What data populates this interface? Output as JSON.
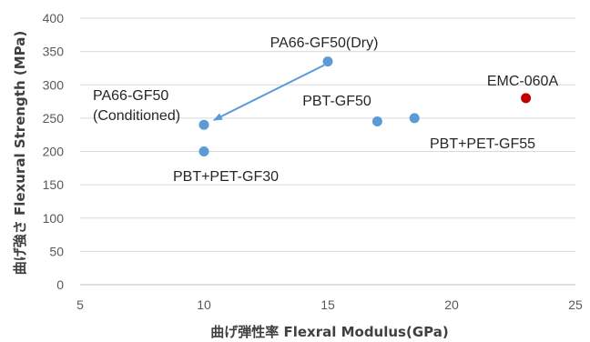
{
  "chart_data": {
    "type": "scatter",
    "xlabel": "曲げ弾性率 Flexral Modulus(GPa)",
    "ylabel": "曲げ強さ Flexural Strength (MPa)",
    "xlim": [
      5,
      25
    ],
    "ylim": [
      0,
      400
    ],
    "x_ticks": [
      "5",
      "10",
      "15",
      "20",
      "25"
    ],
    "y_ticks": [
      "0",
      "50",
      "100",
      "150",
      "200",
      "250",
      "300",
      "350",
      "400"
    ],
    "grid": "horizontal",
    "legend": "none",
    "points": [
      {
        "label": "PA66-GF50(Dry)",
        "x": 15,
        "y": 335,
        "color": "#5b9bd5"
      },
      {
        "label": "PA66-GF50 (Conditioned)",
        "label_lines": [
          "PA66-GF50",
          "(Conditioned)"
        ],
        "x": 10,
        "y": 240,
        "color": "#5b9bd5"
      },
      {
        "label": "PBT+PET-GF30",
        "x": 10,
        "y": 200,
        "color": "#5b9bd5"
      },
      {
        "label": "PBT-GF50",
        "x": 17,
        "y": 245,
        "color": "#5b9bd5"
      },
      {
        "label": "PBT+PET-GF55",
        "x": 18.5,
        "y": 250,
        "color": "#5b9bd5"
      },
      {
        "label": "EMC-060A",
        "x": 23,
        "y": 280,
        "color": "#c00000"
      }
    ],
    "arrow": {
      "from": [
        15,
        335
      ],
      "to": [
        10.4,
        247
      ],
      "color": "#5b9bd5"
    }
  }
}
